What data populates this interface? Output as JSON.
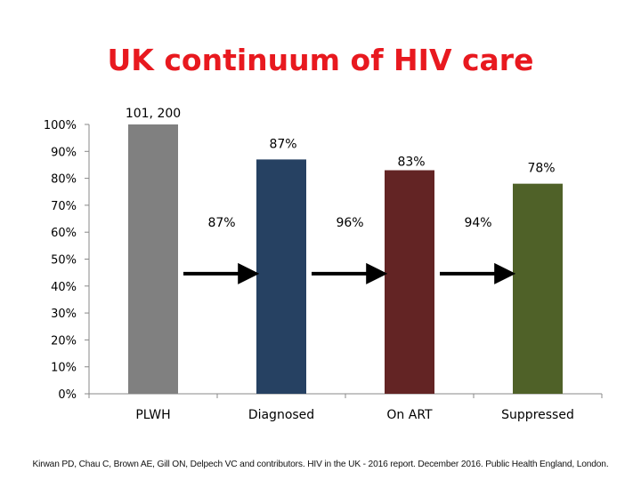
{
  "slide": {
    "title": "UK continuum of HIV care",
    "citation": "Kirwan PD, Chau C, Brown AE, Gill ON, Delpech VC and contributors. HIV in the UK - 2016 report. December 2016. Public Health England, London."
  },
  "chart_data": {
    "type": "bar",
    "title": "UK continuum of HIV care",
    "categories": [
      "PLWH",
      "Diagnosed",
      "On ART",
      "Suppressed"
    ],
    "values": [
      100,
      87,
      83,
      78
    ],
    "value_labels": [
      "101, 200",
      "87%",
      "83%",
      "78%"
    ],
    "colors": [
      "#808080",
      "#264162",
      "#632424",
      "#4f6128"
    ],
    "ylim": [
      0,
      100
    ],
    "yticks": [
      0,
      10,
      20,
      30,
      40,
      50,
      60,
      70,
      80,
      90,
      100
    ],
    "ytick_labels": [
      "0%",
      "10%",
      "20%",
      "30%",
      "40%",
      "50%",
      "60%",
      "70%",
      "80%",
      "90%",
      "100%"
    ],
    "grid": false,
    "legend": "none",
    "transitions": [
      {
        "from": "PLWH",
        "to": "Diagnosed",
        "label": "87%"
      },
      {
        "from": "Diagnosed",
        "to": "On ART",
        "label": "96%"
      },
      {
        "from": "On ART",
        "to": "Suppressed",
        "label": "94%"
      }
    ]
  }
}
